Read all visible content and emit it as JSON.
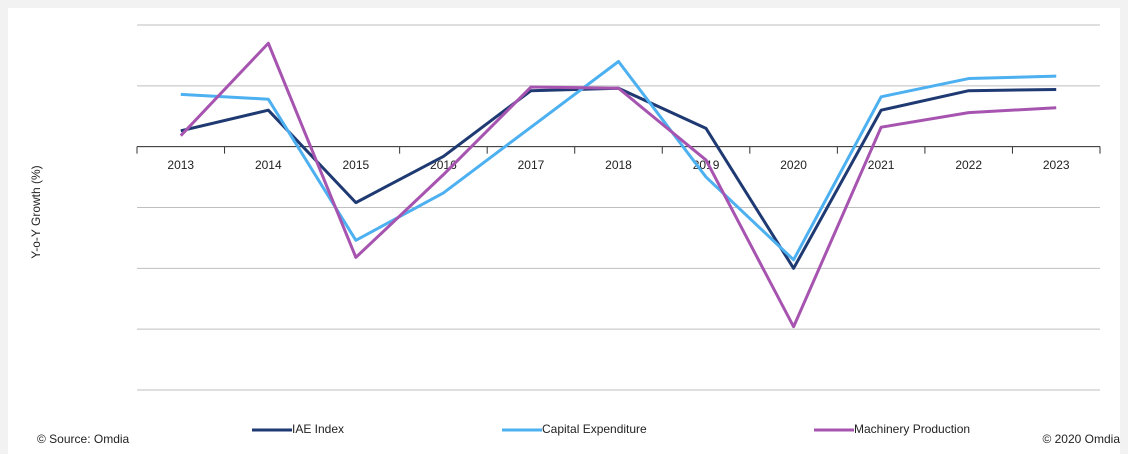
{
  "chart_data": {
    "type": "line",
    "y_label": "Y-o-Y Growth (%)",
    "categories": [
      "2013",
      "2014",
      "2015",
      "2016",
      "2017",
      "2018",
      "2019",
      "2020",
      "2021",
      "2022",
      "2023"
    ],
    "series": [
      {
        "name": "IAE Index",
        "color": "#1f3a73",
        "values": [
          1.3,
          3.0,
          -4.6,
          -0.8,
          4.6,
          4.8,
          1.5,
          -10.0,
          3.0,
          4.6,
          4.7
        ]
      },
      {
        "name": "Capital Expenditure",
        "color": "#4db0f0",
        "values": [
          4.3,
          3.9,
          -7.7,
          -3.8,
          1.6,
          7.0,
          -2.5,
          -9.3,
          4.1,
          5.6,
          5.8
        ]
      },
      {
        "name": "Machinery Production",
        "color": "#a654b0",
        "values": [
          0.9,
          8.5,
          -9.1,
          -2.3,
          4.9,
          4.8,
          -1.1,
          -14.8,
          1.6,
          2.8,
          3.2
        ]
      }
    ],
    "ylim": [
      -20,
      10
    ],
    "yticks": [
      -20,
      -15,
      -10,
      -5,
      0,
      5,
      10
    ],
    "grid": true,
    "source": "© Source: Omdia",
    "copyright": "© 2020 Omdia"
  }
}
